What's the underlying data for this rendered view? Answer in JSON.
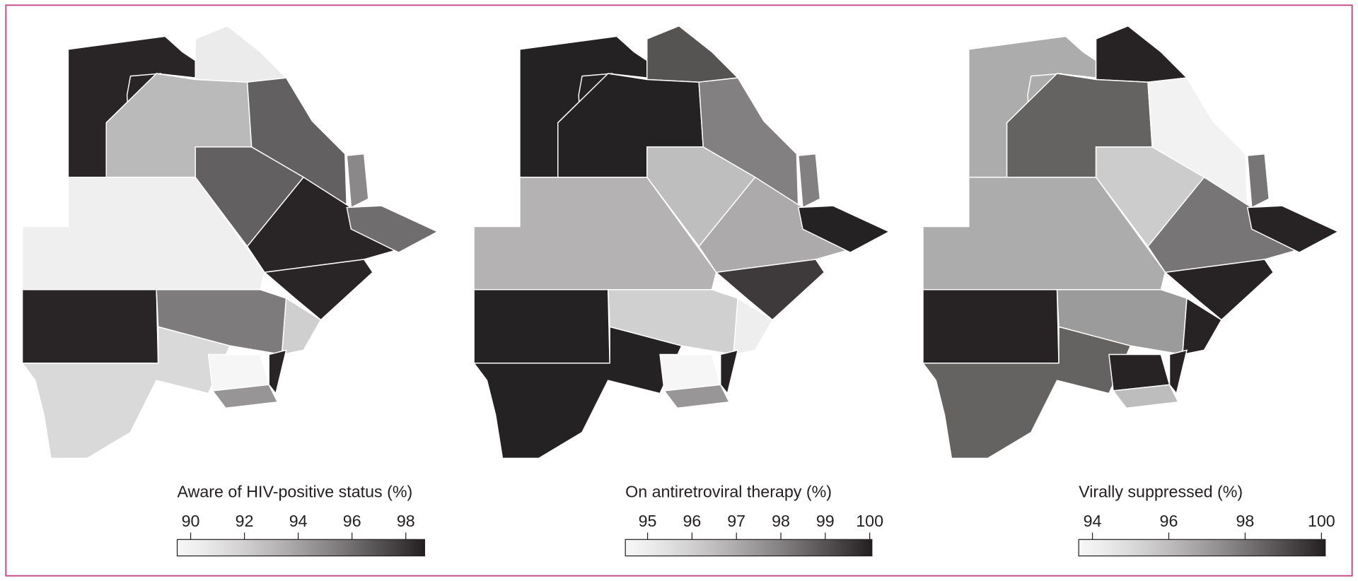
{
  "maps": [
    {
      "title": "Aware of HIV-positive status (%)",
      "lim": [
        89.5,
        98.7
      ],
      "ticks": [
        90,
        92,
        94,
        96,
        98
      ],
      "values": [
        98.5,
        98.5,
        90.5,
        93,
        96.5,
        96.5,
        95,
        90.2,
        98.5,
        96,
        98.5,
        98.5,
        95.5,
        91.5,
        92,
        89.7,
        94.5,
        98.5
      ]
    },
    {
      "title": "On antiretroviral therapy (%)",
      "lim": [
        94.5,
        100.05
      ],
      "ticks": [
        95,
        96,
        97,
        98,
        99,
        100
      ],
      "values": [
        100,
        100,
        99,
        100,
        98,
        96.5,
        98,
        96.8,
        97,
        100,
        99.5,
        100,
        96,
        100,
        95,
        94.6,
        97.5,
        100
      ]
    },
    {
      "title": "Virally suppressed (%)",
      "lim": [
        93.64,
        100.1
      ],
      "ticks": [
        94,
        96,
        98,
        100
      ],
      "values": [
        96.5,
        96.5,
        100,
        98.5,
        94,
        95.5,
        98,
        96.5,
        98,
        100,
        100,
        100,
        97,
        98.5,
        100,
        100,
        96,
        100
      ]
    }
  ]
}
